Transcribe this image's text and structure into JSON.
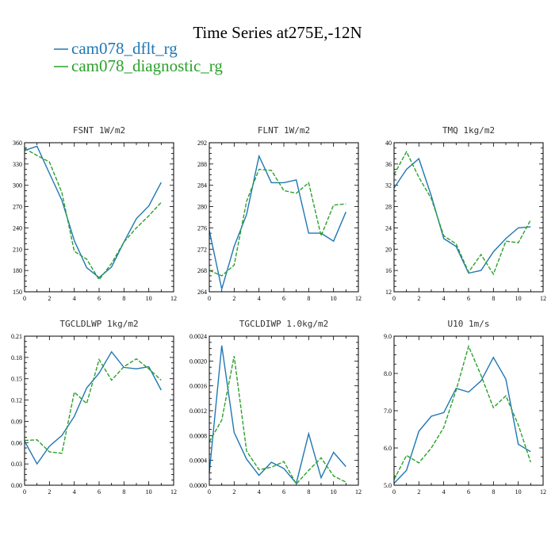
{
  "figure": {
    "title": "Time Series at275E,-12N"
  },
  "legend": [
    {
      "label": "cam078_dflt_rg",
      "color": "#1f77b4",
      "dash": "solid"
    },
    {
      "label": "cam078_diagnostic_rg",
      "color": "#2ca02c",
      "dash": "dashed"
    }
  ],
  "chart_data": [
    {
      "type": "line",
      "title": "FSNT  1W/m2",
      "x": [
        0,
        1,
        2,
        3,
        4,
        5,
        6,
        7,
        8,
        9,
        10,
        11
      ],
      "xlim": [
        0,
        12
      ],
      "xticks": [
        "0",
        "2",
        "4",
        "6",
        "8",
        "10",
        "12"
      ],
      "xtick_values": [
        0,
        2,
        4,
        6,
        8,
        10,
        12
      ],
      "ylim": [
        150,
        360
      ],
      "yticks": [
        "150",
        "180",
        "210",
        "240",
        "270",
        "300",
        "330",
        "360"
      ],
      "ytick_values": [
        150,
        180,
        210,
        240,
        270,
        300,
        330,
        360
      ],
      "series": [
        {
          "name": "cam078_dflt_rg",
          "values": [
            349,
            355,
            317,
            279,
            222,
            184,
            170,
            185,
            220,
            253,
            271,
            304
          ]
        },
        {
          "name": "cam078_diagnostic_rg",
          "values": [
            352,
            342,
            333,
            290,
            207,
            196,
            167,
            190,
            220,
            240,
            257,
            276
          ]
        }
      ]
    },
    {
      "type": "line",
      "title": "FLNT  1W/m2",
      "x": [
        0,
        1,
        2,
        3,
        4,
        5,
        6,
        7,
        8,
        9,
        10,
        11
      ],
      "xlim": [
        0,
        12
      ],
      "xticks": [
        "0",
        "2",
        "4",
        "6",
        "8",
        "10",
        "12"
      ],
      "xtick_values": [
        0,
        2,
        4,
        6,
        8,
        10,
        12
      ],
      "ylim": [
        264,
        292
      ],
      "yticks": [
        "264",
        "268",
        "272",
        "276",
        "280",
        "284",
        "288",
        "292"
      ],
      "ytick_values": [
        264,
        268,
        272,
        276,
        280,
        284,
        288,
        292
      ],
      "series": [
        {
          "name": "cam078_dflt_rg",
          "values": [
            275.5,
            264.5,
            272.5,
            278.5,
            289.5,
            284.5,
            284.5,
            285,
            275,
            275,
            273.5,
            279
          ]
        },
        {
          "name": "cam078_diagnostic_rg",
          "values": [
            268,
            267,
            269,
            281,
            287,
            286.8,
            283,
            282.5,
            284.5,
            274.5,
            280.3,
            280.5
          ]
        }
      ]
    },
    {
      "type": "line",
      "title": "TMQ  1kg/m2",
      "x": [
        0,
        1,
        2,
        3,
        4,
        5,
        6,
        7,
        8,
        9,
        10,
        11
      ],
      "xlim": [
        0,
        12
      ],
      "xticks": [
        "0",
        "2",
        "4",
        "6",
        "8",
        "10",
        "12"
      ],
      "xtick_values": [
        0,
        2,
        4,
        6,
        8,
        10,
        12
      ],
      "ylim": [
        12,
        40
      ],
      "yticks": [
        "12",
        "16",
        "20",
        "24",
        "28",
        "32",
        "36",
        "40"
      ],
      "ytick_values": [
        12,
        16,
        20,
        24,
        28,
        32,
        36,
        40
      ],
      "series": [
        {
          "name": "cam078_dflt_rg",
          "values": [
            31.5,
            35,
            37,
            30,
            22,
            20.5,
            15.5,
            16,
            19.5,
            22,
            24,
            24.2
          ]
        },
        {
          "name": "cam078_diagnostic_rg",
          "values": [
            34,
            38.3,
            33.5,
            29.5,
            22.5,
            21,
            15.7,
            19,
            15.3,
            21.5,
            21.2,
            25.5
          ]
        }
      ]
    },
    {
      "type": "line",
      "title": "TGCLDLWP  1kg/m2",
      "x": [
        0,
        1,
        2,
        3,
        4,
        5,
        6,
        7,
        8,
        9,
        10,
        11
      ],
      "xlim": [
        0,
        12
      ],
      "xticks": [
        "0",
        "2",
        "4",
        "6",
        "8",
        "10",
        "12"
      ],
      "xtick_values": [
        0,
        2,
        4,
        6,
        8,
        10,
        12
      ],
      "ylim": [
        0,
        0.21
      ],
      "yticks": [
        "0.00",
        "0.03",
        "0.06",
        "0.09",
        "0.12",
        "0.15",
        "0.18",
        "0.21"
      ],
      "ytick_values": [
        0,
        0.03,
        0.06,
        0.09,
        0.12,
        0.15,
        0.18,
        0.21
      ],
      "series": [
        {
          "name": "cam078_dflt_rg",
          "values": [
            0.062,
            0.03,
            0.055,
            0.07,
            0.097,
            0.137,
            0.158,
            0.188,
            0.166,
            0.164,
            0.167,
            0.134
          ]
        },
        {
          "name": "cam078_diagnostic_rg",
          "values": [
            0.063,
            0.064,
            0.047,
            0.045,
            0.131,
            0.115,
            0.177,
            0.148,
            0.167,
            0.178,
            0.164,
            0.148
          ]
        }
      ]
    },
    {
      "type": "line",
      "title": "TGCLDIWP  1.0kg/m2",
      "x": [
        0,
        1,
        2,
        3,
        4,
        5,
        6,
        7,
        8,
        9,
        10,
        11
      ],
      "xlim": [
        0,
        12
      ],
      "xticks": [
        "0",
        "2",
        "4",
        "6",
        "8",
        "10",
        "12"
      ],
      "xtick_values": [
        0,
        2,
        4,
        6,
        8,
        10,
        12
      ],
      "ylim": [
        0,
        0.0024
      ],
      "yticks": [
        "0.0000",
        "0.0004",
        "0.0008",
        "0.0012",
        "0.0016",
        "0.0020",
        "0.0024"
      ],
      "ytick_values": [
        0,
        0.0004,
        0.0008,
        0.0012,
        0.0016,
        0.002,
        0.0024
      ],
      "series": [
        {
          "name": "cam078_dflt_rg",
          "values": [
            0.0002,
            0.00225,
            0.00085,
            0.00042,
            0.00016,
            0.00037,
            0.00027,
            3e-05,
            0.00083,
            0.00012,
            0.00053,
            0.0003
          ]
        },
        {
          "name": "cam078_diagnostic_rg",
          "values": [
            0.0007,
            0.00105,
            0.00208,
            0.00055,
            0.00025,
            0.00029,
            0.00038,
            2e-05,
            0.00024,
            0.00044,
            0.00015,
            5e-05
          ]
        }
      ]
    },
    {
      "type": "line",
      "title": "U10  1m/s",
      "x": [
        0,
        1,
        2,
        3,
        4,
        5,
        6,
        7,
        8,
        9,
        10,
        11
      ],
      "xlim": [
        0,
        12
      ],
      "xticks": [
        "0",
        "2",
        "4",
        "6",
        "8",
        "10",
        "12"
      ],
      "xtick_values": [
        0,
        2,
        4,
        6,
        8,
        10,
        12
      ],
      "ylim": [
        5,
        9
      ],
      "yticks": [
        "5.0",
        "6.0",
        "7.0",
        "8.0",
        "9.0"
      ],
      "ytick_values": [
        5,
        6,
        7,
        8,
        9
      ],
      "series": [
        {
          "name": "cam078_dflt_rg",
          "values": [
            5.05,
            5.4,
            6.45,
            6.85,
            6.95,
            7.6,
            7.5,
            7.8,
            8.43,
            7.85,
            6.1,
            5.9
          ]
        },
        {
          "name": "cam078_diagnostic_rg",
          "values": [
            5.15,
            5.8,
            5.6,
            6.0,
            6.55,
            7.55,
            8.73,
            7.95,
            7.08,
            7.4,
            6.62,
            5.62
          ]
        }
      ]
    }
  ]
}
